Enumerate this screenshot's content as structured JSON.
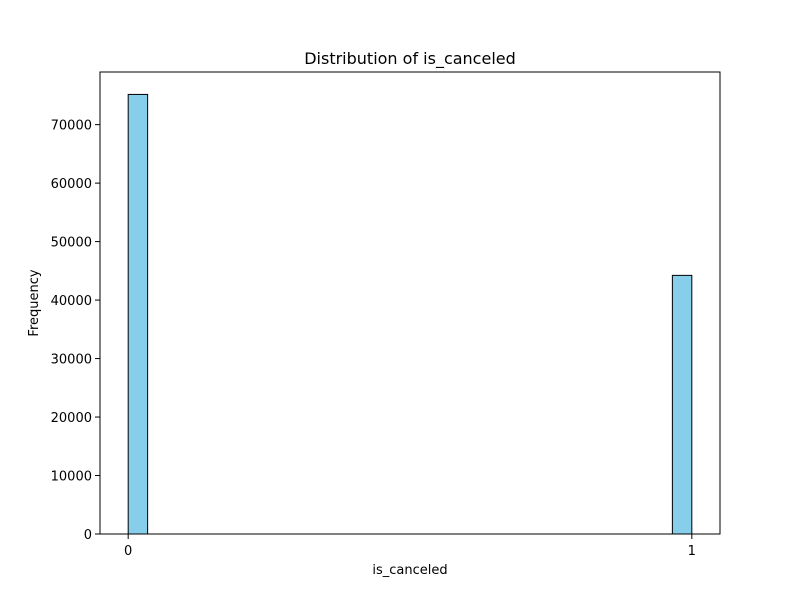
{
  "chart_data": {
    "type": "bar",
    "title": "Distribution of is_canceled",
    "xlabel": "is_canceled",
    "ylabel": "Frequency",
    "bars": [
      {
        "x_start": 0.0,
        "x_end": 0.0345,
        "value": 75166
      },
      {
        "x_start": 0.9655,
        "x_end": 1.0,
        "value": 44224
      }
    ],
    "xlim": [
      -0.05,
      1.05
    ],
    "ylim": [
      0,
      79000
    ],
    "xticks": [
      {
        "value": 0,
        "label": "0"
      },
      {
        "value": 1,
        "label": "1"
      }
    ],
    "yticks": [
      {
        "value": 0,
        "label": "0"
      },
      {
        "value": 10000,
        "label": "10000"
      },
      {
        "value": 20000,
        "label": "20000"
      },
      {
        "value": 30000,
        "label": "30000"
      },
      {
        "value": 40000,
        "label": "40000"
      },
      {
        "value": 50000,
        "label": "50000"
      },
      {
        "value": 60000,
        "label": "60000"
      },
      {
        "value": 70000,
        "label": "70000"
      }
    ],
    "grid": false,
    "legend": false,
    "colors": {
      "bar_fill": "#87ceeb",
      "bar_edge": "#000000",
      "axes": "#000000"
    }
  }
}
